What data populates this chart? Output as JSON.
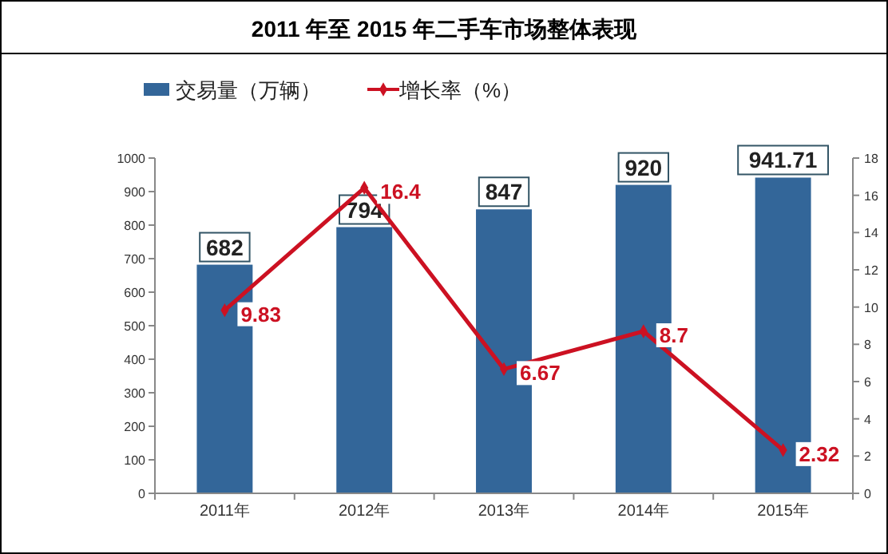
{
  "chart_data": {
    "type": "bar",
    "title": "2011 年至 2015 年二手车市场整体表现",
    "categories": [
      "2011年",
      "2012年",
      "2013年",
      "2014年",
      "2015年"
    ],
    "series": [
      {
        "name": "交易量（万辆）",
        "color": "#336699",
        "values": [
          682,
          794,
          847,
          920,
          941.71
        ]
      },
      {
        "name": "增长率（%）",
        "type": "line",
        "axis": "y2",
        "color": "#cc1122",
        "values": [
          9.83,
          16.4,
          6.67,
          8.7,
          2.32
        ]
      }
    ],
    "ylim": [
      0,
      1000
    ],
    "yticks": [
      0,
      100,
      200,
      300,
      400,
      500,
      600,
      700,
      800,
      900,
      1000
    ],
    "y2lim": [
      0,
      18
    ],
    "y2ticks": [
      0,
      2,
      4,
      6,
      8,
      10,
      12,
      14,
      16,
      18
    ],
    "data_labels": true,
    "legend": "top left",
    "marker": "diamond",
    "grid": false
  }
}
